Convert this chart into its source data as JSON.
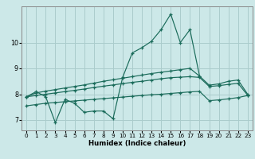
{
  "xlabel": "Humidex (Indice chaleur)",
  "background_color": "#cce8e8",
  "grid_color": "#aacccc",
  "line_color": "#1a6b5a",
  "x_values": [
    0,
    1,
    2,
    3,
    4,
    5,
    6,
    7,
    8,
    9,
    10,
    11,
    12,
    13,
    14,
    15,
    16,
    17,
    18,
    19,
    20,
    21,
    22,
    23
  ],
  "main_x": [
    0,
    1,
    2,
    3,
    4,
    5,
    6,
    7,
    8,
    9,
    10,
    11,
    12,
    13,
    14,
    15,
    16,
    17,
    18
  ],
  "main_y": [
    7.9,
    8.1,
    7.9,
    6.9,
    7.8,
    7.65,
    7.3,
    7.35,
    7.35,
    7.05,
    8.65,
    9.6,
    9.8,
    10.05,
    10.5,
    11.1,
    10.0,
    10.5,
    8.7
  ],
  "line_upper": [
    7.9,
    8.05,
    8.12,
    8.18,
    8.24,
    8.3,
    8.36,
    8.43,
    8.5,
    8.56,
    8.62,
    8.68,
    8.74,
    8.8,
    8.85,
    8.9,
    8.95,
    9.0,
    8.7,
    8.35,
    8.4,
    8.5,
    8.55,
    8.0
  ],
  "line_mid": [
    7.9,
    7.95,
    8.0,
    8.05,
    8.1,
    8.15,
    8.2,
    8.26,
    8.31,
    8.36,
    8.41,
    8.46,
    8.5,
    8.55,
    8.6,
    8.64,
    8.66,
    8.68,
    8.65,
    8.3,
    8.33,
    8.38,
    8.42,
    7.96
  ],
  "line_lower": [
    7.55,
    7.6,
    7.65,
    7.68,
    7.71,
    7.74,
    7.77,
    7.8,
    7.83,
    7.86,
    7.89,
    7.92,
    7.95,
    7.98,
    8.0,
    8.03,
    8.06,
    8.09,
    8.11,
    7.75,
    7.78,
    7.82,
    7.87,
    7.95
  ],
  "xlim": [
    -0.5,
    23.5
  ],
  "ylim": [
    6.6,
    11.4
  ],
  "yticks": [
    7,
    8,
    9,
    10
  ],
  "xticks": [
    0,
    1,
    2,
    3,
    4,
    5,
    6,
    7,
    8,
    9,
    10,
    11,
    12,
    13,
    14,
    15,
    16,
    17,
    18,
    19,
    20,
    21,
    22,
    23
  ]
}
